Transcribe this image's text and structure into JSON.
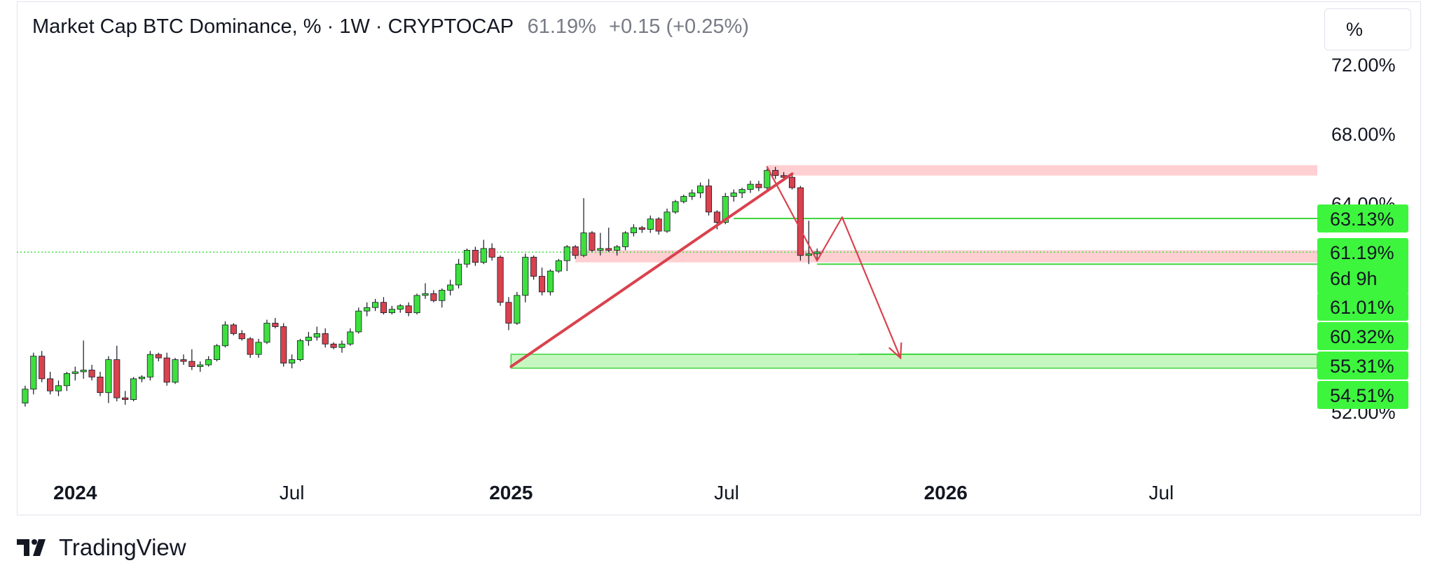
{
  "header": {
    "symbol": "Market Cap BTC Dominance, % · 1W · CRYPTOCAP",
    "last": "61.19%",
    "change": "+0.15 (+0.25%)"
  },
  "scale_button": {
    "label": "%"
  },
  "footer": {
    "brand": "TradingView"
  },
  "colors": {
    "up": "#3ee03e",
    "down": "#d9424e",
    "zone_red": "#ffcfd2",
    "zone_green": "#c7f7c0",
    "level_line": "#3ed63e",
    "badge": "#3ef53e",
    "trend": "#d9424e"
  },
  "chart_data": {
    "type": "candlestick",
    "title": "Market Cap BTC Dominance, % · 1W · CRYPTOCAP",
    "ylim": [
      48.5,
      73
    ],
    "y_ticks": [
      {
        "value": 72,
        "label": "72.00%"
      },
      {
        "value": 68,
        "label": "68.00%"
      },
      {
        "value": 64,
        "label": "64.00%"
      },
      {
        "value": 52,
        "label": "52.00%"
      }
    ],
    "x_ticks": [
      {
        "date": "2024-01-01",
        "label": "2024",
        "bold": true
      },
      {
        "date": "2024-07-01",
        "label": "Jul",
        "bold": false
      },
      {
        "date": "2025-01-01",
        "label": "2025",
        "bold": true
      },
      {
        "date": "2025-07-01",
        "label": "Jul",
        "bold": false
      },
      {
        "date": "2026-01-01",
        "label": "2026",
        "bold": true
      },
      {
        "date": "2026-07-01",
        "label": "Jul",
        "bold": false
      }
    ],
    "x_range": [
      "2023-11-13",
      "2026-11-09"
    ],
    "candles": [
      [
        "2023-11-20",
        52.5,
        53.5,
        52.3,
        53.3
      ],
      [
        "2023-11-27",
        53.3,
        55.4,
        53.0,
        55.2
      ],
      [
        "2023-12-04",
        55.2,
        55.5,
        53.7,
        53.9
      ],
      [
        "2023-12-11",
        53.9,
        54.3,
        53.0,
        53.2
      ],
      [
        "2023-12-18",
        53.2,
        53.8,
        52.9,
        53.5
      ],
      [
        "2023-12-25",
        53.5,
        54.3,
        53.2,
        54.2
      ],
      [
        "2024-01-01",
        54.2,
        54.6,
        53.8,
        54.3
      ],
      [
        "2024-01-08",
        54.3,
        56.1,
        53.9,
        54.4
      ],
      [
        "2024-01-15",
        54.4,
        54.7,
        53.8,
        54.0
      ],
      [
        "2024-01-22",
        54.0,
        54.3,
        52.9,
        53.1
      ],
      [
        "2024-01-29",
        53.1,
        55.2,
        52.5,
        55.0
      ],
      [
        "2024-02-05",
        55.0,
        55.8,
        52.6,
        52.8
      ],
      [
        "2024-02-12",
        52.8,
        53.2,
        52.4,
        52.7
      ],
      [
        "2024-02-19",
        52.7,
        54.0,
        52.6,
        53.9
      ],
      [
        "2024-02-26",
        53.9,
        54.1,
        53.7,
        54.0
      ],
      [
        "2024-03-04",
        54.0,
        55.5,
        53.8,
        55.3
      ],
      [
        "2024-03-11",
        55.3,
        55.4,
        54.9,
        55.1
      ],
      [
        "2024-03-18",
        55.1,
        55.4,
        53.5,
        53.7
      ],
      [
        "2024-03-25",
        53.7,
        55.1,
        53.6,
        55.0
      ],
      [
        "2024-04-01",
        55.0,
        55.3,
        54.7,
        54.9
      ],
      [
        "2024-04-08",
        54.9,
        55.6,
        54.4,
        54.6
      ],
      [
        "2024-04-15",
        54.6,
        54.9,
        54.3,
        54.7
      ],
      [
        "2024-04-22",
        54.7,
        55.2,
        54.6,
        55.0
      ],
      [
        "2024-04-29",
        55.0,
        55.9,
        54.9,
        55.8
      ],
      [
        "2024-05-06",
        55.8,
        57.2,
        55.7,
        57.0
      ],
      [
        "2024-05-13",
        57.0,
        57.1,
        56.4,
        56.5
      ],
      [
        "2024-05-20",
        56.5,
        56.7,
        56.1,
        56.2
      ],
      [
        "2024-05-27",
        56.2,
        56.3,
        55.1,
        55.3
      ],
      [
        "2024-06-03",
        55.3,
        56.2,
        55.1,
        56.0
      ],
      [
        "2024-06-10",
        56.0,
        57.3,
        55.9,
        57.1
      ],
      [
        "2024-06-17",
        57.1,
        57.4,
        56.8,
        56.9
      ],
      [
        "2024-06-24",
        56.9,
        57.1,
        54.6,
        54.8
      ],
      [
        "2024-07-01",
        54.8,
        55.3,
        54.5,
        55.0
      ],
      [
        "2024-07-08",
        55.0,
        56.2,
        54.9,
        56.1
      ],
      [
        "2024-07-15",
        56.1,
        56.6,
        55.8,
        56.3
      ],
      [
        "2024-07-22",
        56.3,
        56.9,
        56.1,
        56.5
      ],
      [
        "2024-07-29",
        56.5,
        56.8,
        55.7,
        55.9
      ],
      [
        "2024-08-05",
        55.9,
        56.0,
        55.6,
        55.7
      ],
      [
        "2024-08-12",
        55.7,
        56.1,
        55.4,
        55.9
      ],
      [
        "2024-08-19",
        55.9,
        56.8,
        55.8,
        56.6
      ],
      [
        "2024-08-26",
        56.6,
        58.0,
        56.5,
        57.8
      ],
      [
        "2024-09-02",
        57.8,
        58.3,
        57.5,
        58.0
      ],
      [
        "2024-09-09",
        58.0,
        58.5,
        57.8,
        58.3
      ],
      [
        "2024-09-16",
        58.3,
        58.6,
        57.6,
        57.7
      ],
      [
        "2024-09-23",
        57.7,
        58.1,
        57.6,
        57.9
      ],
      [
        "2024-09-30",
        57.9,
        58.2,
        57.7,
        58.1
      ],
      [
        "2024-10-07",
        58.1,
        58.3,
        57.5,
        57.7
      ],
      [
        "2024-10-14",
        57.7,
        58.8,
        57.6,
        58.7
      ],
      [
        "2024-10-21",
        58.7,
        59.4,
        58.5,
        58.8
      ],
      [
        "2024-10-28",
        58.8,
        59.0,
        58.3,
        58.4
      ],
      [
        "2024-11-04",
        58.4,
        59.1,
        58.0,
        59.0
      ],
      [
        "2024-11-11",
        59.0,
        59.6,
        58.7,
        59.3
      ],
      [
        "2024-11-18",
        59.3,
        60.8,
        59.1,
        60.5
      ],
      [
        "2024-11-25",
        60.5,
        61.4,
        60.3,
        61.3
      ],
      [
        "2024-12-02",
        61.3,
        61.5,
        60.4,
        60.6
      ],
      [
        "2024-12-09",
        60.6,
        61.9,
        60.5,
        61.4
      ],
      [
        "2024-12-16",
        61.4,
        61.7,
        60.7,
        60.9
      ],
      [
        "2024-12-23",
        60.9,
        61.0,
        58.1,
        58.3
      ],
      [
        "2024-12-30",
        58.3,
        58.6,
        56.7,
        57.1
      ],
      [
        "2025-01-06",
        57.1,
        58.9,
        57.0,
        58.7
      ],
      [
        "2025-01-13",
        58.7,
        61.1,
        58.3,
        60.9
      ],
      [
        "2025-01-20",
        60.9,
        61.0,
        59.6,
        59.8
      ],
      [
        "2025-01-27",
        59.8,
        60.3,
        58.7,
        58.9
      ],
      [
        "2025-02-03",
        58.9,
        60.2,
        58.7,
        60.1
      ],
      [
        "2025-02-10",
        60.1,
        60.8,
        60.0,
        60.7
      ],
      [
        "2025-02-17",
        60.7,
        61.6,
        60.1,
        61.5
      ],
      [
        "2025-02-24",
        61.5,
        61.6,
        60.8,
        61.0
      ],
      [
        "2025-03-03",
        61.0,
        64.3,
        60.9,
        62.3
      ],
      [
        "2025-03-10",
        62.3,
        62.4,
        61.2,
        61.3
      ],
      [
        "2025-03-17",
        61.3,
        62.3,
        61.0,
        61.4
      ],
      [
        "2025-03-24",
        61.4,
        62.6,
        61.2,
        61.3
      ],
      [
        "2025-03-31",
        61.3,
        61.6,
        61.0,
        61.5
      ],
      [
        "2025-04-07",
        61.5,
        62.4,
        61.3,
        62.3
      ],
      [
        "2025-04-14",
        62.3,
        62.8,
        62.1,
        62.6
      ],
      [
        "2025-04-21",
        62.6,
        62.7,
        62.3,
        62.5
      ],
      [
        "2025-04-28",
        62.5,
        63.3,
        62.3,
        63.1
      ],
      [
        "2025-05-05",
        63.1,
        63.2,
        62.2,
        62.4
      ],
      [
        "2025-05-12",
        62.4,
        63.7,
        62.3,
        63.5
      ],
      [
        "2025-05-19",
        63.5,
        64.2,
        63.4,
        64.1
      ],
      [
        "2025-05-26",
        64.1,
        64.5,
        64.0,
        64.4
      ],
      [
        "2025-06-02",
        64.4,
        64.8,
        64.2,
        64.6
      ],
      [
        "2025-06-09",
        64.6,
        65.2,
        64.3,
        65.0
      ],
      [
        "2025-06-16",
        65.0,
        65.4,
        63.3,
        63.5
      ],
      [
        "2025-06-23",
        63.5,
        63.6,
        62.5,
        62.9
      ],
      [
        "2025-06-30",
        62.9,
        64.6,
        62.8,
        64.4
      ],
      [
        "2025-07-07",
        64.4,
        64.8,
        64.1,
        64.6
      ],
      [
        "2025-07-14",
        64.6,
        64.9,
        64.3,
        64.8
      ],
      [
        "2025-07-21",
        64.8,
        65.3,
        64.6,
        65.1
      ],
      [
        "2025-07-28",
        65.1,
        65.3,
        64.7,
        64.9
      ],
      [
        "2025-08-04",
        64.9,
        66.0,
        64.8,
        65.9
      ],
      [
        "2025-08-11",
        65.9,
        66.1,
        65.4,
        65.6
      ],
      [
        "2025-08-18",
        65.6,
        65.8,
        65.3,
        65.5
      ],
      [
        "2025-08-25",
        65.5,
        65.7,
        64.8,
        64.9
      ],
      [
        "2025-09-01",
        64.9,
        65.0,
        60.7,
        61.0
      ],
      [
        "2025-09-08",
        61.0,
        63.0,
        60.5,
        61.1
      ],
      [
        "2025-09-15",
        61.1,
        61.4,
        60.8,
        61.2
      ]
    ],
    "lines": [
      {
        "type": "trend",
        "from": [
          "2025-01-01",
          54.6
        ],
        "to": [
          "2025-08-25",
          65.7
        ]
      },
      {
        "type": "trend",
        "from": [
          "2025-08-04",
          66.1
        ],
        "to": [
          "2025-09-15",
          60.7
        ]
      },
      {
        "type": "trend",
        "from": [
          "2025-09-15",
          60.7
        ],
        "to": [
          "2025-10-06",
          63.2
        ]
      },
      {
        "type": "trend",
        "from": [
          "2025-10-06",
          63.2
        ],
        "to": [
          "2025-11-24",
          55.1
        ],
        "arrow": true
      }
    ],
    "zones": [
      {
        "color": "red",
        "from_date": "2025-08-04",
        "y_low": 65.6,
        "y_high": 66.2
      },
      {
        "color": "red",
        "from_date": "2025-02-24",
        "y_low": 60.6,
        "y_high": 61.3
      },
      {
        "color": "green",
        "from_date": "2025-01-01",
        "y_low": 54.51,
        "y_high": 55.31
      }
    ],
    "levels": [
      {
        "value": 63.13,
        "from_date": "2025-07-07"
      },
      {
        "value": 60.5,
        "from_date": "2025-09-15"
      },
      {
        "value": 55.31,
        "from_date": "2025-10-20"
      }
    ],
    "last_price_line": 61.19,
    "badges": [
      {
        "value": 63.13,
        "label": "63.13%"
      },
      {
        "value": 61.19,
        "label": "61.19%",
        "sub": "6d 9h"
      },
      {
        "value": 61.01,
        "label": "61.01%"
      },
      {
        "value": 60.32,
        "label": "60.32%"
      },
      {
        "value": 55.31,
        "label": "55.31%"
      },
      {
        "value": 54.51,
        "label": "54.51%"
      }
    ]
  }
}
